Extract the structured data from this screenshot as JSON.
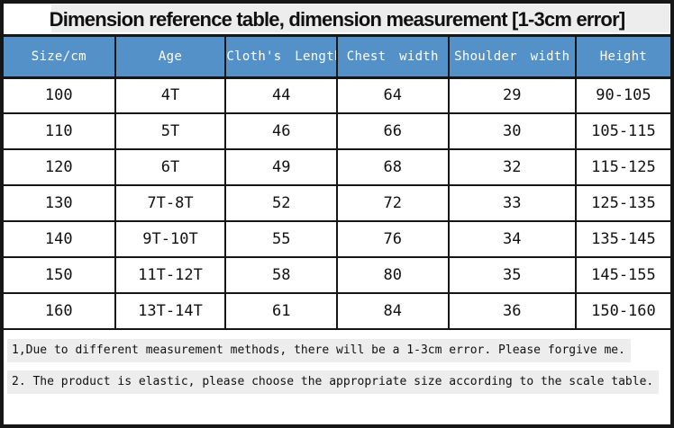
{
  "title": "Dimension reference table, dimension measurement [1-3cm error]",
  "chart_data": {
    "type": "table",
    "title": "Dimension reference table, dimension measurement [1-3cm error]",
    "columns": [
      "Size/cm",
      "Age",
      "Cloth's Length",
      "Chest width",
      "Shoulder width",
      "Height"
    ],
    "rows": [
      [
        "100",
        "4T",
        "44",
        "64",
        "29",
        "90-105"
      ],
      [
        "110",
        "5T",
        "46",
        "66",
        "30",
        "105-115"
      ],
      [
        "120",
        "6T",
        "49",
        "68",
        "32",
        "115-125"
      ],
      [
        "130",
        "7T-8T",
        "52",
        "72",
        "33",
        "125-135"
      ],
      [
        "140",
        "9T-10T",
        "55",
        "76",
        "34",
        "135-145"
      ],
      [
        "150",
        "11T-12T",
        "58",
        "80",
        "35",
        "145-155"
      ],
      [
        "160",
        "13T-14T",
        "61",
        "84",
        "36",
        "150-160"
      ]
    ]
  },
  "notes": [
    "1,Due to different measurement methods, there will be a 1-3cm error. Please forgive me.",
    "2. The product is elastic, please choose the appropriate size according to the scale table."
  ],
  "colors": {
    "header_bg": "#5591c9",
    "header_text": "#ffffff",
    "border": "#161616",
    "highlight": "#ededed",
    "page_bg": "#ffffff",
    "text": "#111111"
  }
}
